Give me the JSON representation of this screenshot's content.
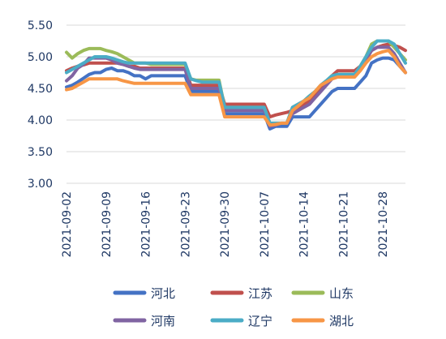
{
  "chart_data": {
    "type": "line",
    "title": "",
    "xlabel": "",
    "ylabel": "",
    "ylim": [
      3.0,
      5.5
    ],
    "yticks": [
      "3.00",
      "3.50",
      "4.00",
      "4.50",
      "5.00",
      "5.50"
    ],
    "ytick_values": [
      3.0,
      3.5,
      4.0,
      4.5,
      5.0,
      5.5
    ],
    "x": [
      "2021-09-02",
      "2021-09-03",
      "2021-09-04",
      "2021-09-05",
      "2021-09-06",
      "2021-09-07",
      "2021-09-08",
      "2021-09-09",
      "2021-09-10",
      "2021-09-11",
      "2021-09-12",
      "2021-09-13",
      "2021-09-14",
      "2021-09-15",
      "2021-09-16",
      "2021-09-17",
      "2021-09-18",
      "2021-09-19",
      "2021-09-20",
      "2021-09-21",
      "2021-09-22",
      "2021-09-23",
      "2021-09-24",
      "2021-09-25",
      "2021-09-26",
      "2021-09-27",
      "2021-09-28",
      "2021-09-29",
      "2021-09-30",
      "2021-10-01",
      "2021-10-02",
      "2021-10-03",
      "2021-10-04",
      "2021-10-05",
      "2021-10-06",
      "2021-10-07",
      "2021-10-08",
      "2021-10-09",
      "2021-10-10",
      "2021-10-11",
      "2021-10-12",
      "2021-10-13",
      "2021-10-14",
      "2021-10-15",
      "2021-10-16",
      "2021-10-17",
      "2021-10-18",
      "2021-10-19",
      "2021-10-20",
      "2021-10-21",
      "2021-10-22",
      "2021-10-23",
      "2021-10-24",
      "2021-10-25",
      "2021-10-26",
      "2021-10-27",
      "2021-10-28",
      "2021-10-29",
      "2021-10-30",
      "2021-10-31",
      "2021-11-01"
    ],
    "xticks": [
      "2021-09-02",
      "2021-09-09",
      "2021-09-16",
      "2021-09-23",
      "2021-09-30",
      "2021-10-07",
      "2021-10-14",
      "2021-10-21",
      "2021-10-28"
    ],
    "grid": true,
    "legend_position": "bottom",
    "series": [
      {
        "name": "河北",
        "color": "#4472c4",
        "values": [
          4.52,
          4.55,
          4.6,
          4.66,
          4.72,
          4.75,
          4.75,
          4.8,
          4.82,
          4.78,
          4.78,
          4.75,
          4.7,
          4.7,
          4.65,
          4.7,
          4.7,
          4.7,
          4.7,
          4.7,
          4.7,
          4.7,
          4.45,
          4.45,
          4.45,
          4.45,
          4.45,
          4.45,
          4.1,
          4.1,
          4.1,
          4.1,
          4.1,
          4.1,
          4.1,
          4.1,
          3.86,
          3.9,
          3.9,
          3.9,
          4.05,
          4.05,
          4.05,
          4.05,
          4.15,
          4.25,
          4.35,
          4.45,
          4.5,
          4.5,
          4.5,
          4.5,
          4.6,
          4.7,
          4.9,
          4.95,
          4.98,
          4.98,
          4.95,
          4.85,
          4.75
        ]
      },
      {
        "name": "江苏",
        "color": "#c0504d",
        "values": [
          4.78,
          4.82,
          4.85,
          4.87,
          4.9,
          4.9,
          4.9,
          4.9,
          4.9,
          4.9,
          4.88,
          4.85,
          4.85,
          4.82,
          4.82,
          4.82,
          4.82,
          4.82,
          4.82,
          4.82,
          4.82,
          4.82,
          4.55,
          4.55,
          4.55,
          4.55,
          4.55,
          4.55,
          4.25,
          4.25,
          4.25,
          4.25,
          4.25,
          4.25,
          4.25,
          4.25,
          4.05,
          4.08,
          4.1,
          4.12,
          4.15,
          4.2,
          4.25,
          4.3,
          4.4,
          4.5,
          4.6,
          4.7,
          4.78,
          4.78,
          4.78,
          4.78,
          4.85,
          4.95,
          5.1,
          5.15,
          5.18,
          5.2,
          5.18,
          5.15,
          5.1
        ]
      },
      {
        "name": "山东",
        "color": "#9bbb59",
        "values": [
          5.07,
          4.98,
          5.05,
          5.1,
          5.13,
          5.13,
          5.13,
          5.1,
          5.08,
          5.05,
          5.0,
          4.95,
          4.9,
          4.9,
          4.9,
          4.88,
          4.88,
          4.88,
          4.88,
          4.88,
          4.88,
          4.88,
          4.65,
          4.63,
          4.63,
          4.63,
          4.63,
          4.63,
          4.2,
          4.2,
          4.2,
          4.2,
          4.2,
          4.2,
          4.2,
          4.2,
          3.95,
          3.95,
          3.95,
          3.95,
          4.2,
          4.25,
          4.3,
          4.38,
          4.45,
          4.55,
          4.62,
          4.7,
          4.72,
          4.72,
          4.72,
          4.72,
          4.85,
          5.0,
          5.2,
          5.25,
          5.25,
          5.25,
          5.15,
          5.05,
          4.95
        ]
      },
      {
        "name": "河南",
        "color": "#8064a2",
        "values": [
          4.62,
          4.7,
          4.82,
          4.88,
          4.98,
          4.98,
          4.98,
          4.98,
          4.95,
          4.9,
          4.88,
          4.85,
          4.82,
          4.8,
          4.8,
          4.8,
          4.8,
          4.8,
          4.8,
          4.8,
          4.8,
          4.8,
          4.5,
          4.5,
          4.5,
          4.5,
          4.5,
          4.5,
          4.15,
          4.15,
          4.15,
          4.15,
          4.15,
          4.15,
          4.15,
          4.15,
          3.9,
          3.92,
          3.95,
          3.95,
          4.1,
          4.15,
          4.2,
          4.25,
          4.35,
          4.45,
          4.55,
          4.65,
          4.7,
          4.7,
          4.7,
          4.7,
          4.8,
          4.95,
          5.1,
          5.15,
          5.15,
          5.15,
          5.05,
          4.9,
          4.75
        ]
      },
      {
        "name": "辽宁",
        "color": "#4bacc6",
        "values": [
          4.75,
          4.8,
          4.85,
          4.9,
          4.95,
          5.0,
          5.0,
          5.0,
          4.98,
          4.95,
          4.92,
          4.9,
          4.9,
          4.9,
          4.9,
          4.9,
          4.9,
          4.9,
          4.9,
          4.9,
          4.9,
          4.9,
          4.65,
          4.62,
          4.6,
          4.6,
          4.6,
          4.6,
          4.2,
          4.2,
          4.2,
          4.2,
          4.2,
          4.2,
          4.2,
          4.2,
          3.95,
          3.95,
          3.95,
          3.95,
          4.2,
          4.25,
          4.3,
          4.38,
          4.45,
          4.55,
          4.62,
          4.7,
          4.72,
          4.72,
          4.72,
          4.72,
          4.85,
          5.0,
          5.15,
          5.25,
          5.25,
          5.25,
          5.2,
          5.05,
          4.9
        ]
      },
      {
        "name": "湖北",
        "color": "#f79646",
        "values": [
          4.48,
          4.5,
          4.55,
          4.6,
          4.65,
          4.65,
          4.65,
          4.65,
          4.65,
          4.65,
          4.62,
          4.6,
          4.58,
          4.58,
          4.58,
          4.58,
          4.58,
          4.58,
          4.58,
          4.58,
          4.58,
          4.58,
          4.4,
          4.4,
          4.4,
          4.4,
          4.4,
          4.4,
          4.05,
          4.05,
          4.05,
          4.05,
          4.05,
          4.05,
          4.05,
          4.05,
          3.92,
          3.93,
          3.95,
          3.95,
          4.15,
          4.22,
          4.3,
          4.35,
          4.45,
          4.55,
          4.6,
          4.65,
          4.68,
          4.68,
          4.68,
          4.68,
          4.78,
          4.9,
          5.0,
          5.05,
          5.08,
          5.1,
          5.0,
          4.85,
          4.75
        ]
      }
    ]
  }
}
